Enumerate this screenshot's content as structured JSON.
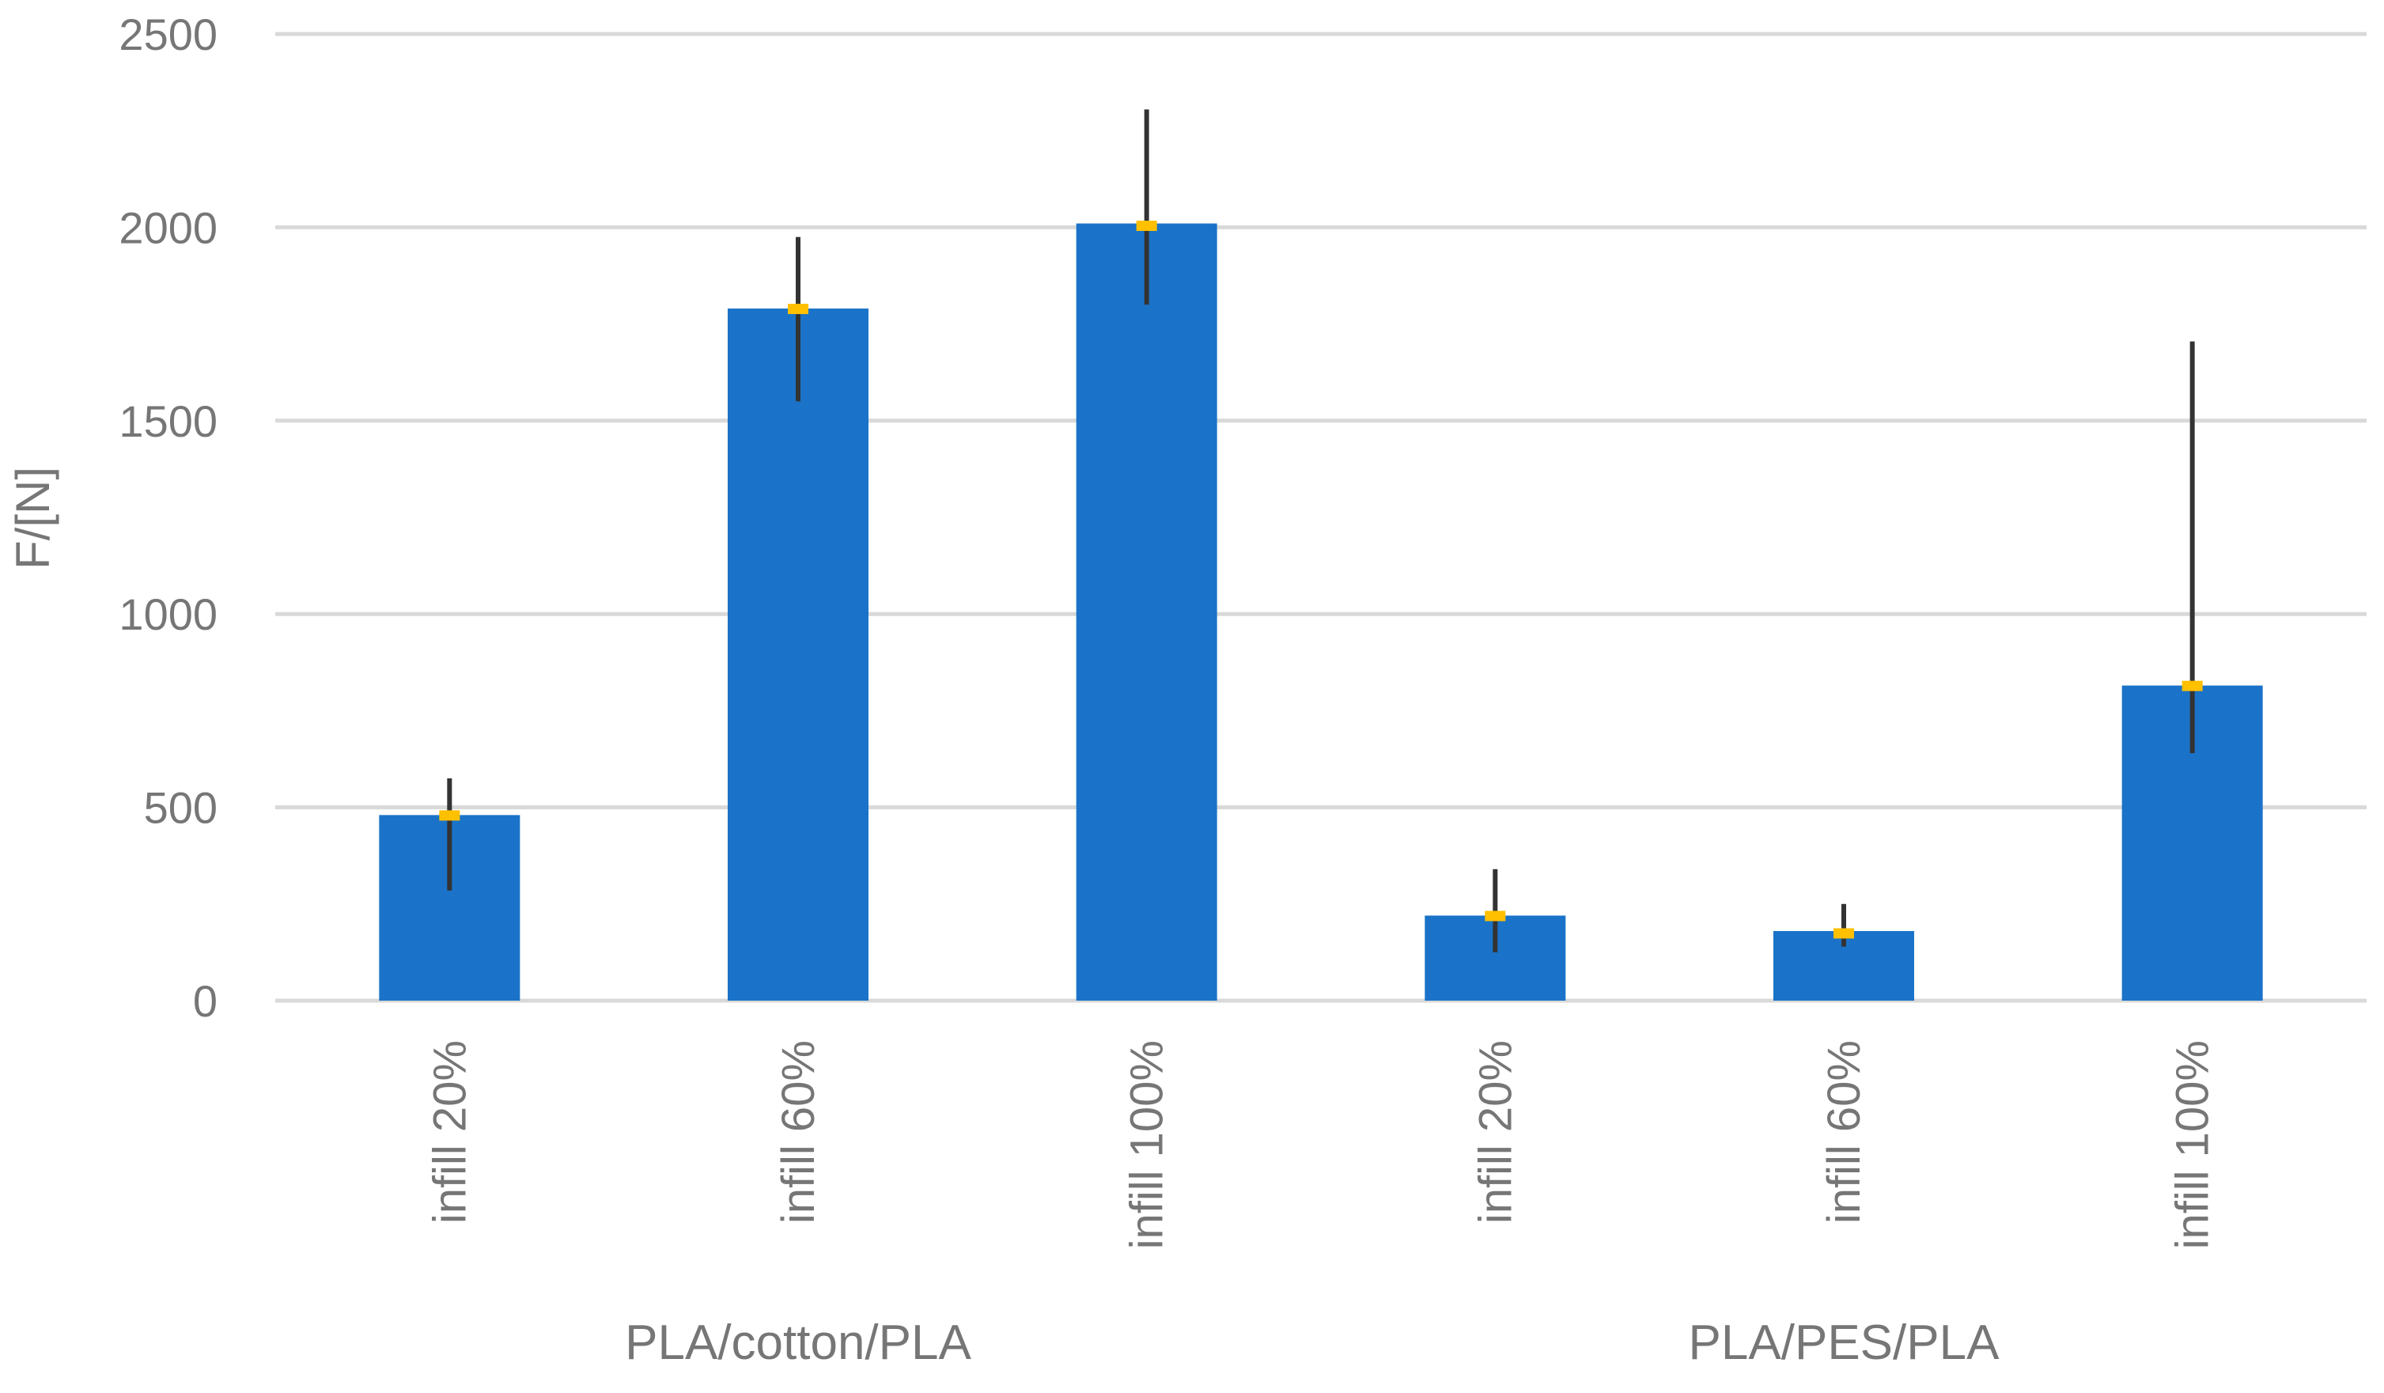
{
  "chart_data": {
    "type": "bar",
    "title": "",
    "ylabel": "F/[N]",
    "xlabel": "",
    "ylim": [
      0,
      2500
    ],
    "yticks": [
      0,
      500,
      1000,
      1500,
      2000,
      2500
    ],
    "grid": true,
    "legend": "none",
    "groups": [
      {
        "label": "PLA/cotton/PLA",
        "categories": [
          "infill 20%",
          "infill 60%",
          "infill 100%"
        ]
      },
      {
        "label": "PLA/PES/PLA",
        "categories": [
          "infill 20%",
          "infill 60%",
          "infill 100%"
        ]
      }
    ],
    "categories": [
      "infill 20%",
      "infill 60%",
      "infill 100%",
      "infill 20%",
      "infill 60%",
      "infill 100%"
    ],
    "series": [
      {
        "values": [
          480,
          1790,
          2010,
          220,
          180,
          815
        ],
        "error_low": [
          285,
          1550,
          1800,
          125,
          140,
          640
        ],
        "error_high": [
          575,
          1975,
          2305,
          340,
          250,
          1705
        ],
        "marker_values": [
          480,
          1790,
          2005,
          220,
          175,
          815
        ]
      }
    ],
    "colors": {
      "bar": "#1a73c8",
      "error_bar": "#333333",
      "marker": "#ffc000",
      "grid": "#d9d9d9",
      "text": "#767676"
    }
  }
}
